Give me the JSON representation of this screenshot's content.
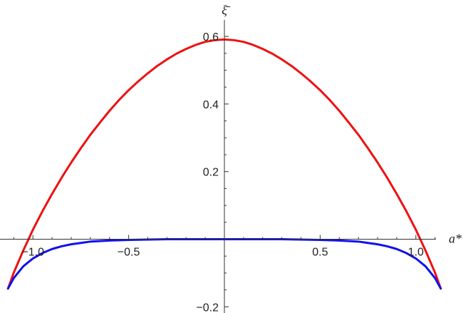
{
  "chart_data": {
    "type": "line",
    "title": "",
    "xlabel": "a*",
    "ylabel": "ξ̄",
    "xlim": [
      -1.13,
      1.13
    ],
    "ylim": [
      -0.2,
      0.6
    ],
    "grid": false,
    "legend": "none",
    "x_ticks": [
      -1.0,
      -0.5,
      0.5,
      1.0
    ],
    "x_tick_labels": [
      "-1.0",
      "-0.5",
      "0.5",
      "1.0"
    ],
    "y_ticks": [
      -0.2,
      0.2,
      0.4,
      0.6
    ],
    "y_tick_labels": [
      "-0.2",
      "0.2",
      "0.4",
      "0.6"
    ],
    "series": [
      {
        "color": "#ee1111",
        "x": [
          -1.13,
          -1.1,
          -1.05,
          -1.0,
          -0.95,
          -0.9,
          -0.85,
          -0.8,
          -0.75,
          -0.7,
          -0.65,
          -0.6,
          -0.55,
          -0.5,
          -0.45,
          -0.4,
          -0.35,
          -0.3,
          -0.25,
          -0.2,
          -0.15,
          -0.1,
          -0.05,
          0.0,
          0.05,
          0.1,
          0.15,
          0.2,
          0.25,
          0.3,
          0.35,
          0.4,
          0.45,
          0.5,
          0.55,
          0.6,
          0.65,
          0.7,
          0.75,
          0.8,
          0.85,
          0.9,
          0.95,
          1.0,
          1.05,
          1.1,
          1.13
        ],
        "y": [
          -0.146,
          -0.099,
          -0.033,
          0.028,
          0.083,
          0.134,
          0.182,
          0.227,
          0.269,
          0.309,
          0.345,
          0.38,
          0.412,
          0.441,
          0.467,
          0.491,
          0.513,
          0.532,
          0.549,
          0.563,
          0.575,
          0.584,
          0.589,
          0.591,
          0.589,
          0.584,
          0.575,
          0.563,
          0.549,
          0.532,
          0.513,
          0.491,
          0.467,
          0.441,
          0.412,
          0.38,
          0.345,
          0.309,
          0.269,
          0.227,
          0.182,
          0.134,
          0.083,
          0.028,
          -0.033,
          -0.099,
          -0.146
        ]
      },
      {
        "color": "#1111ee",
        "x": [
          -1.13,
          -1.1,
          -1.05,
          -1.0,
          -0.95,
          -0.9,
          -0.85,
          -0.8,
          -0.75,
          -0.7,
          -0.6,
          -0.5,
          -0.4,
          -0.3,
          -0.2,
          -0.1,
          0.0,
          0.1,
          0.2,
          0.3,
          0.4,
          0.5,
          0.6,
          0.7,
          0.75,
          0.8,
          0.85,
          0.9,
          0.95,
          1.0,
          1.05,
          1.1,
          1.13
        ],
        "y": [
          -0.146,
          -0.115,
          -0.08,
          -0.057,
          -0.041,
          -0.029,
          -0.021,
          -0.015,
          -0.011,
          -0.007,
          -0.004,
          -0.002,
          -0.001,
          0.0,
          0.0,
          0.0,
          0.0,
          0.0,
          0.0,
          0.0,
          -0.001,
          -0.002,
          -0.004,
          -0.007,
          -0.011,
          -0.015,
          -0.021,
          -0.029,
          -0.041,
          -0.057,
          -0.08,
          -0.115,
          -0.146
        ]
      }
    ]
  }
}
